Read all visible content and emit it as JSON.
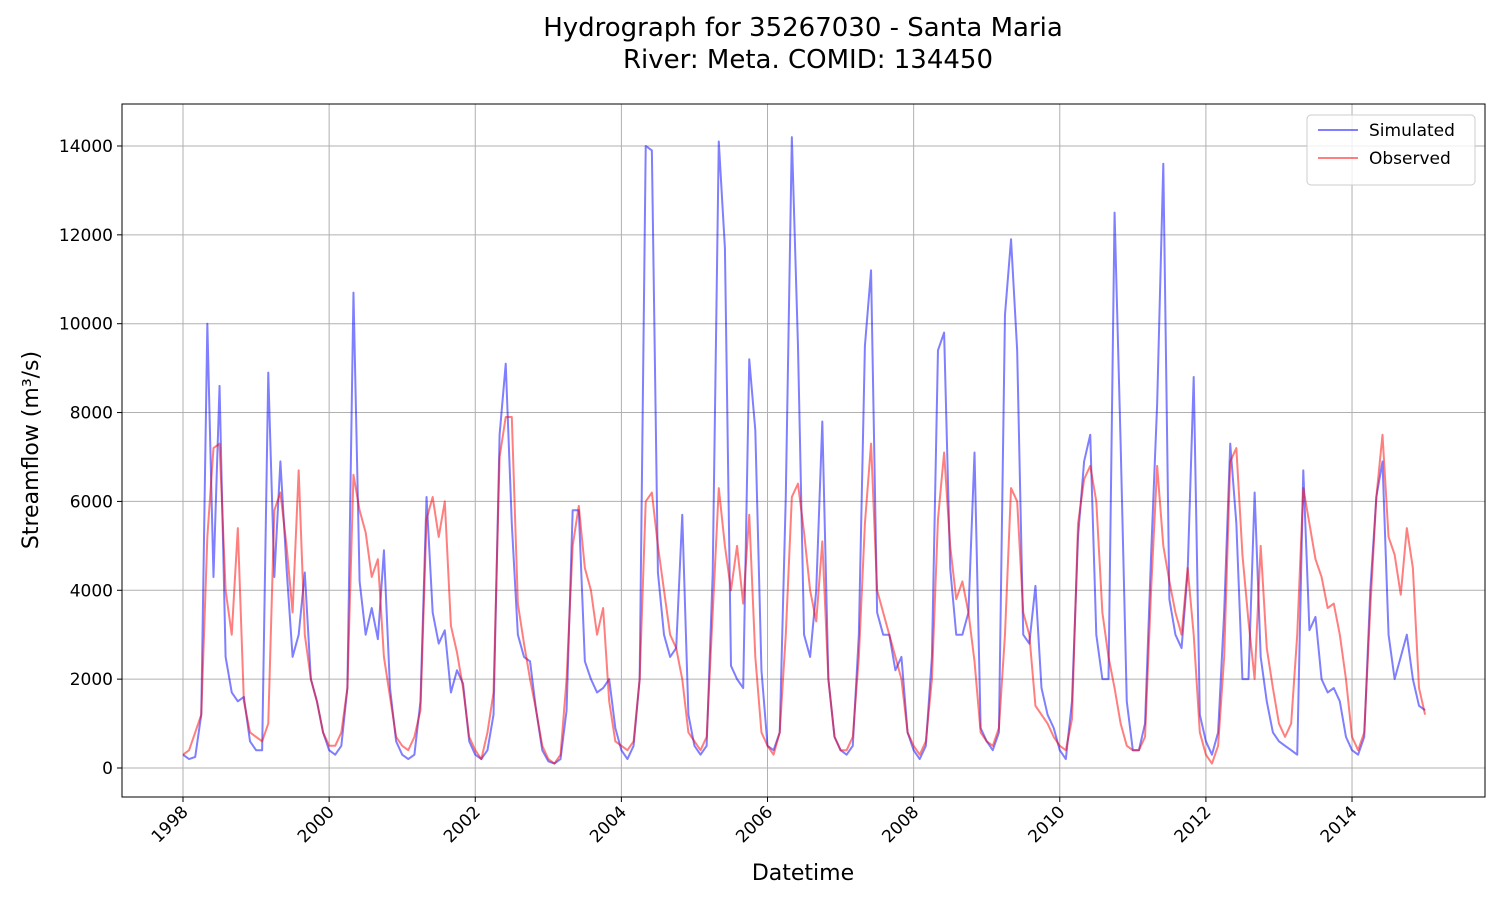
{
  "chart_data": {
    "type": "line",
    "title": "Hydrograph for 35267030 - Santa Maria",
    "subtitle": "River: Meta. COMID: 134450",
    "x_label": "Datetime",
    "y_label": "Streamflow (m³/s)",
    "x": [
      1998,
      1998.083,
      1998.167,
      1998.25,
      1998.333,
      1998.417,
      1998.5,
      1998.583,
      1998.667,
      1998.75,
      1998.833,
      1998.917,
      1999,
      1999.083,
      1999.167,
      1999.25,
      1999.333,
      1999.417,
      1999.5,
      1999.583,
      1999.667,
      1999.75,
      1999.833,
      1999.917,
      2000,
      2000.083,
      2000.167,
      2000.25,
      2000.333,
      2000.417,
      2000.5,
      2000.583,
      2000.667,
      2000.75,
      2000.833,
      2000.917,
      2001,
      2001.083,
      2001.167,
      2001.25,
      2001.333,
      2001.417,
      2001.5,
      2001.583,
      2001.667,
      2001.75,
      2001.833,
      2001.917,
      2002,
      2002.083,
      2002.167,
      2002.25,
      2002.333,
      2002.417,
      2002.5,
      2002.583,
      2002.667,
      2002.75,
      2002.833,
      2002.917,
      2003,
      2003.083,
      2003.167,
      2003.25,
      2003.333,
      2003.417,
      2003.5,
      2003.583,
      2003.667,
      2003.75,
      2003.833,
      2003.917,
      2004,
      2004.083,
      2004.167,
      2004.25,
      2004.333,
      2004.417,
      2004.5,
      2004.583,
      2004.667,
      2004.75,
      2004.833,
      2004.917,
      2005,
      2005.083,
      2005.167,
      2005.25,
      2005.333,
      2005.417,
      2005.5,
      2005.583,
      2005.667,
      2005.75,
      2005.833,
      2005.917,
      2006,
      2006.083,
      2006.167,
      2006.25,
      2006.333,
      2006.417,
      2006.5,
      2006.583,
      2006.667,
      2006.75,
      2006.833,
      2006.917,
      2007,
      2007.083,
      2007.167,
      2007.25,
      2007.333,
      2007.417,
      2007.5,
      2007.583,
      2007.667,
      2007.75,
      2007.833,
      2007.917,
      2008,
      2008.083,
      2008.167,
      2008.25,
      2008.333,
      2008.417,
      2008.5,
      2008.583,
      2008.667,
      2008.75,
      2008.833,
      2008.917,
      2009,
      2009.083,
      2009.167,
      2009.25,
      2009.333,
      2009.417,
      2009.5,
      2009.583,
      2009.667,
      2009.75,
      2009.833,
      2009.917,
      2010,
      2010.083,
      2010.167,
      2010.25,
      2010.333,
      2010.417,
      2010.5,
      2010.583,
      2010.667,
      2010.75,
      2010.833,
      2010.917,
      2011,
      2011.083,
      2011.167,
      2011.25,
      2011.333,
      2011.417,
      2011.5,
      2011.583,
      2011.667,
      2011.75,
      2011.833,
      2011.917,
      2012,
      2012.083,
      2012.167,
      2012.25,
      2012.333,
      2012.417,
      2012.5,
      2012.583,
      2012.667,
      2012.75,
      2012.833,
      2012.917,
      2013,
      2013.083,
      2013.167,
      2013.25,
      2013.333,
      2013.417,
      2013.5,
      2013.583,
      2013.667,
      2013.75,
      2013.833,
      2013.917,
      2014,
      2014.083,
      2014.167,
      2014.25,
      2014.333,
      2014.417,
      2014.5,
      2014.583,
      2014.667,
      2014.75,
      2014.833,
      2014.917,
      2015
    ],
    "series": [
      {
        "name": "Simulated",
        "color": "#0000ff",
        "values": [
          300,
          200,
          250,
          1200,
          10000,
          4300,
          8600,
          2500,
          1700,
          1500,
          1600,
          600,
          400,
          400,
          8900,
          4300,
          6900,
          4500,
          2500,
          3000,
          4400,
          2000,
          1500,
          800,
          400,
          300,
          500,
          1800,
          10700,
          4200,
          3000,
          3600,
          2900,
          4900,
          1800,
          600,
          300,
          200,
          300,
          1500,
          6100,
          3500,
          2800,
          3100,
          1700,
          2200,
          1900,
          600,
          300,
          200,
          400,
          1200,
          7500,
          9100,
          5500,
          3000,
          2500,
          2400,
          1300,
          400,
          150,
          100,
          200,
          1300,
          5800,
          5800,
          2400,
          2000,
          1700,
          1800,
          2000,
          900,
          400,
          200,
          500,
          2000,
          14000,
          13900,
          4400,
          3000,
          2500,
          2700,
          5700,
          1200,
          500,
          300,
          500,
          4400,
          14100,
          11700,
          2300,
          2000,
          1800,
          9200,
          7600,
          2200,
          500,
          400,
          800,
          6100,
          14200,
          9500,
          3000,
          2500,
          4000,
          7800,
          2000,
          700,
          400,
          300,
          500,
          3000,
          9500,
          11200,
          3500,
          3000,
          3000,
          2200,
          2500,
          800,
          400,
          200,
          500,
          2500,
          9400,
          9800,
          4500,
          3000,
          3000,
          3500,
          7100,
          900,
          600,
          400,
          800,
          10200,
          11900,
          9400,
          3000,
          2800,
          4100,
          1800,
          1200,
          900,
          400,
          200,
          1500,
          5200,
          6900,
          7500,
          3000,
          2000,
          2000,
          12500,
          7300,
          1500,
          400,
          400,
          1000,
          4800,
          8200,
          13600,
          3800,
          3000,
          2700,
          4400,
          8800,
          1200,
          600,
          300,
          800,
          3500,
          7300,
          5500,
          2000,
          2000,
          6200,
          2500,
          1500,
          800,
          600,
          500,
          400,
          300,
          6700,
          3100,
          3400,
          2000,
          1700,
          1800,
          1500,
          700,
          400,
          300,
          700,
          4000,
          6100,
          6900,
          3000,
          2000,
          2500,
          3000,
          2000,
          1400,
          1300
        ]
      },
      {
        "name": "Observed",
        "color": "#ff0000",
        "values": [
          300,
          400,
          800,
          1200,
          5200,
          7200,
          7300,
          4000,
          3000,
          5400,
          1500,
          800,
          700,
          600,
          1000,
          5800,
          6200,
          5000,
          3500,
          6700,
          3000,
          2000,
          1500,
          800,
          500,
          500,
          800,
          1800,
          6600,
          5800,
          5300,
          4300,
          4700,
          2500,
          1600,
          700,
          500,
          400,
          700,
          1300,
          5600,
          6100,
          5200,
          6000,
          3200,
          2600,
          1800,
          700,
          400,
          200,
          800,
          1700,
          7000,
          7900,
          7900,
          3700,
          2800,
          2000,
          1300,
          500,
          200,
          100,
          300,
          2000,
          5000,
          5900,
          4500,
          4000,
          3000,
          3600,
          1500,
          600,
          500,
          400,
          600,
          2000,
          6000,
          6200,
          5000,
          4000,
          3000,
          2700,
          2000,
          800,
          600,
          400,
          700,
          3500,
          6300,
          5000,
          4000,
          5000,
          3700,
          5700,
          2500,
          800,
          500,
          300,
          800,
          3000,
          6100,
          6400,
          5300,
          4000,
          3300,
          5100,
          2000,
          700,
          400,
          400,
          700,
          2500,
          5500,
          7300,
          4000,
          3500,
          3000,
          2500,
          2000,
          800,
          500,
          300,
          600,
          2000,
          5600,
          7100,
          5000,
          3800,
          4200,
          3500,
          2400,
          800,
          600,
          500,
          900,
          3000,
          6300,
          6000,
          3500,
          3000,
          1400,
          1200,
          1000,
          700,
          500,
          400,
          1100,
          5500,
          6500,
          6800,
          6000,
          3500,
          2500,
          1800,
          1000,
          500,
          400,
          400,
          700,
          4000,
          6800,
          5000,
          4200,
          3500,
          3000,
          4500,
          3000,
          800,
          300,
          100,
          500,
          2500,
          6900,
          7200,
          4800,
          3300,
          2000,
          5000,
          2700,
          1800,
          1000,
          700,
          1000,
          3000,
          6300,
          5500,
          4700,
          4300,
          3600,
          3700,
          3000,
          2000,
          700,
          400,
          800,
          3600,
          6100,
          7500,
          5200,
          4800,
          3900,
          5400,
          4500,
          1800,
          1200
        ]
      }
    ],
    "alpha": 0.5,
    "xlim": [
      1997.165,
      2015.82
    ],
    "xticks": [
      1998,
      2000,
      2002,
      2004,
      2006,
      2008,
      2010,
      2012,
      2014
    ],
    "ylim": [
      -653,
      14945
    ],
    "yticks": [
      0,
      2000,
      4000,
      6000,
      8000,
      10000,
      12000,
      14000
    ],
    "grid": true,
    "legend": "upper right"
  }
}
